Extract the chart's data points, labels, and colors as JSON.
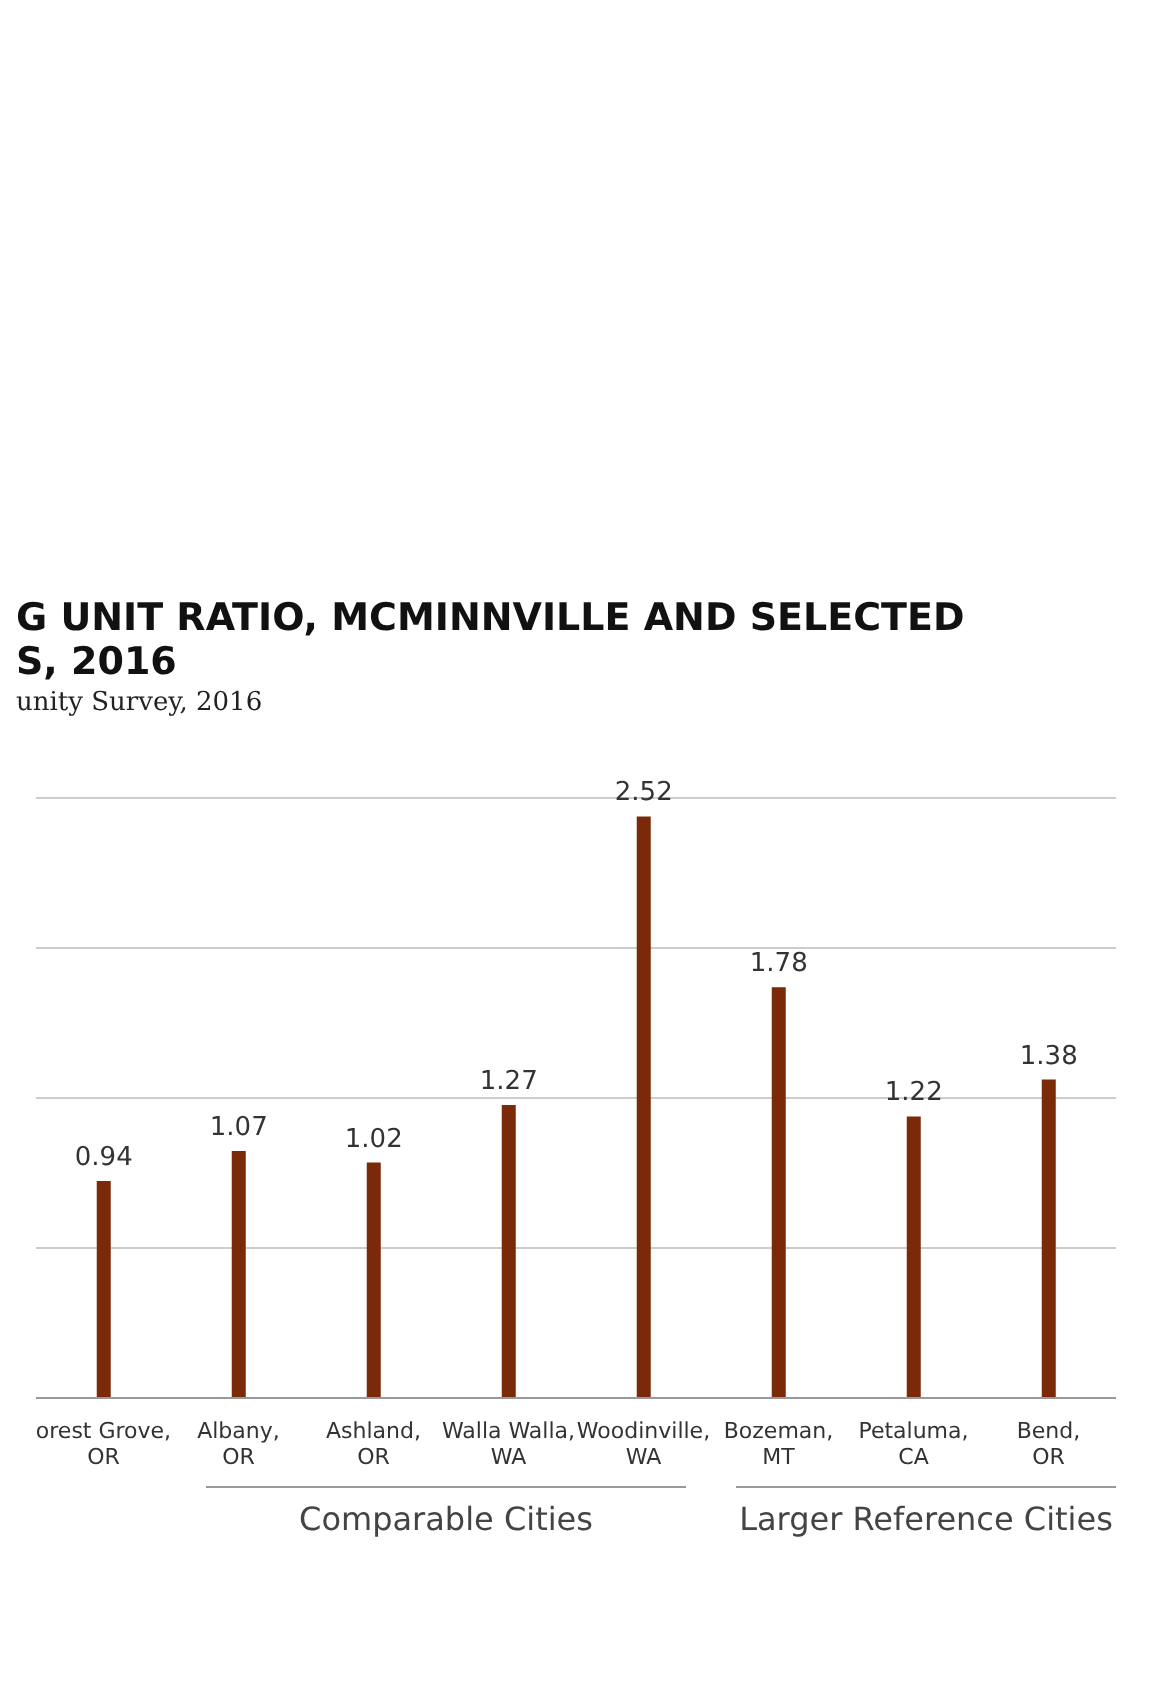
{
  "chart_data": {
    "type": "bar",
    "title": "G UNIT RATIO, MCMINNVILLE AND SELECTED\nS, 2016",
    "subtitle": "unity Survey, 2016",
    "categories": [
      "orest Grove,\nOR",
      "Albany,\nOR",
      "Ashland,\nOR",
      "Walla Walla,\nWA",
      "Woodinville,\nWA",
      "Bozeman,\nMT",
      "Petaluma,\nCA",
      "Bend,\nOR"
    ],
    "values": [
      0.94,
      1.07,
      1.02,
      1.27,
      2.52,
      1.78,
      1.22,
      1.38
    ],
    "color": "#7a2a08",
    "tick_labels": "x",
    "grid": "y",
    "data_labels": true,
    "legend": false,
    "annotations": [
      "Comparable Cities",
      "Larger Reference Cities"
    ]
  }
}
